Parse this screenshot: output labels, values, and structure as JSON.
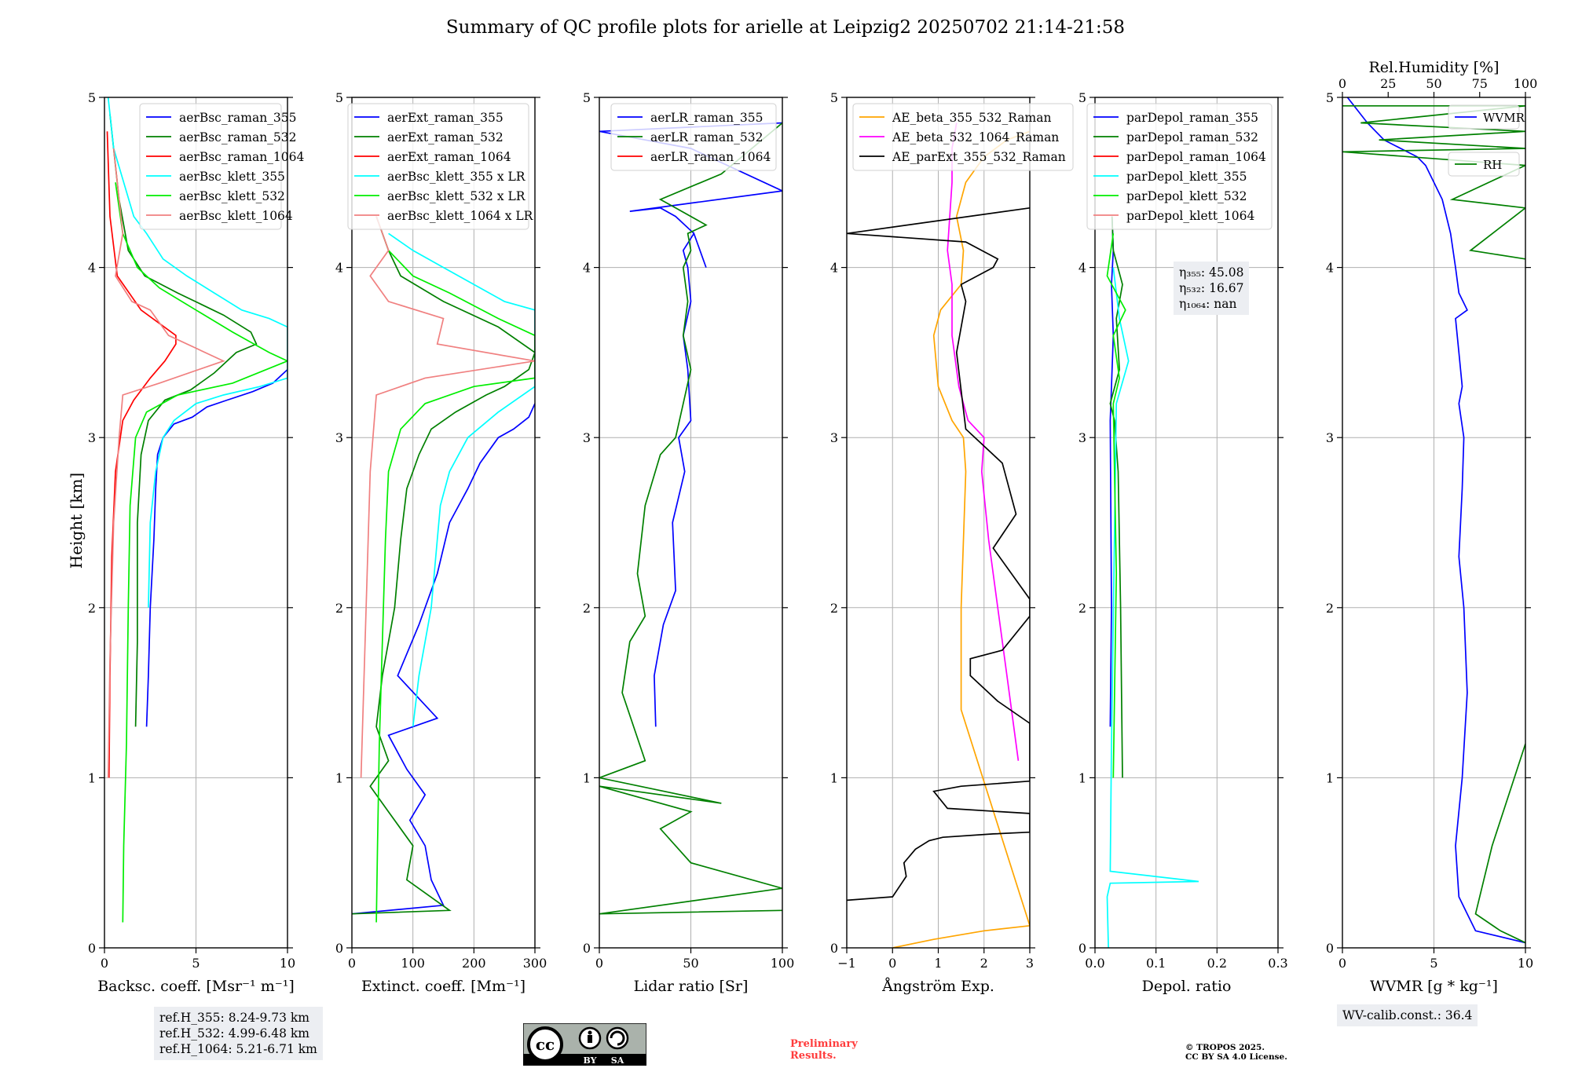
{
  "title": "Summary of QC profile plots for arielle at Leipzig2 20250702 21:14-21:58",
  "ylabel": "Height [km]",
  "chart_data": [
    {
      "type": "line",
      "xlabel": "Backsc. coeff. [Msr⁻¹ m⁻¹]",
      "xlim": [
        0,
        10
      ],
      "ylim": [
        0,
        5
      ],
      "xticks": [
        "0",
        "5",
        "10"
      ],
      "legend": "top-right",
      "series": [
        {
          "name": "aerBsc_raman_355",
          "color": "#0000ff",
          "x": [
            2.3,
            2.4,
            2.5,
            2.7,
            2.8,
            2.9,
            3.2,
            3.8,
            4.8,
            5.6,
            6.7,
            8.1,
            9.2,
            10.0
          ],
          "y": [
            1.3,
            1.6,
            2.0,
            2.4,
            2.7,
            2.9,
            3.0,
            3.08,
            3.12,
            3.18,
            3.22,
            3.27,
            3.32,
            3.4
          ]
        },
        {
          "name": "aerBsc_raman_532",
          "color": "#008000",
          "x": [
            1.7,
            1.8,
            1.8,
            2.0,
            2.4,
            3.3,
            4.7,
            6.0,
            7.2,
            8.3,
            8.0,
            6.5,
            4.0,
            2.2,
            1.3,
            0.8,
            0.3
          ],
          "y": [
            1.3,
            1.8,
            2.5,
            2.9,
            3.1,
            3.22,
            3.28,
            3.38,
            3.5,
            3.55,
            3.62,
            3.72,
            3.85,
            3.95,
            4.1,
            4.4,
            4.9
          ]
        },
        {
          "name": "aerBsc_raman_1064",
          "color": "#ff0000",
          "x": [
            0.25,
            0.3,
            0.4,
            0.6,
            1.0,
            1.6,
            2.5,
            3.3,
            3.9,
            3.9,
            2.0,
            0.7,
            0.3,
            0.15
          ],
          "y": [
            1.0,
            1.6,
            2.3,
            2.8,
            3.1,
            3.22,
            3.35,
            3.45,
            3.55,
            3.6,
            3.75,
            3.95,
            4.3,
            4.8
          ]
        },
        {
          "name": "aerBsc_klett_355",
          "color": "#00ffff",
          "x": [
            2.4,
            2.5,
            2.8,
            3.2,
            3.8,
            5.0,
            6.5,
            8.5,
            10.0,
            10.0,
            9.0,
            7.5,
            6.0,
            4.5,
            3.2,
            2.3,
            1.6,
            0.5,
            0.2
          ],
          "y": [
            2.0,
            2.5,
            2.8,
            3.0,
            3.1,
            3.2,
            3.25,
            3.3,
            3.35,
            3.65,
            3.7,
            3.75,
            3.85,
            3.95,
            4.05,
            4.2,
            4.3,
            4.7,
            5.0
          ]
        },
        {
          "name": "aerBsc_klett_532",
          "color": "#00ee00",
          "x": [
            1.0,
            1.05,
            1.2,
            1.3,
            1.4,
            1.7,
            2.3,
            4.0,
            7.0,
            10.0,
            9.0,
            7.0,
            5.0,
            3.0,
            1.8,
            1.0,
            0.6
          ],
          "y": [
            0.15,
            0.6,
            1.2,
            2.0,
            2.6,
            3.0,
            3.15,
            3.25,
            3.32,
            3.45,
            3.5,
            3.62,
            3.75,
            3.88,
            4.0,
            4.2,
            4.5
          ]
        },
        {
          "name": "aerBsc_klett_1064",
          "color": "#f08080",
          "x": [
            0.2,
            0.3,
            0.5,
            0.8,
            1.0,
            3.0,
            6.5,
            3.5,
            2.5,
            1.5,
            0.6,
            1.0,
            0.5
          ],
          "y": [
            1.0,
            1.7,
            2.5,
            3.0,
            3.25,
            3.32,
            3.45,
            3.6,
            3.75,
            3.8,
            3.95,
            4.2,
            4.7
          ]
        }
      ]
    },
    {
      "type": "line",
      "xlabel": "Extinct. coeff. [Mm⁻¹]",
      "xlim": [
        0,
        300
      ],
      "ylim": [
        0,
        5
      ],
      "xticks": [
        "0",
        "100",
        "200",
        "300"
      ],
      "legend": "top-right",
      "series": [
        {
          "name": "aerExt_raman_355",
          "color": "#0000ff",
          "x": [
            0,
            150,
            130,
            120,
            95,
            120,
            90,
            60,
            140,
            75,
            110,
            140,
            160,
            190,
            210,
            240,
            265,
            290,
            300
          ],
          "y": [
            0.2,
            0.25,
            0.4,
            0.6,
            0.75,
            0.9,
            1.05,
            1.25,
            1.35,
            1.6,
            1.9,
            2.2,
            2.5,
            2.7,
            2.85,
            3.0,
            3.05,
            3.12,
            3.2
          ]
        },
        {
          "name": "aerExt_raman_532",
          "color": "#008000",
          "x": [
            0,
            160,
            90,
            100,
            60,
            30,
            60,
            40,
            50,
            70,
            80,
            90,
            110,
            130,
            170,
            220,
            250,
            290,
            300,
            240,
            150,
            80,
            60,
            40
          ],
          "y": [
            0.2,
            0.22,
            0.4,
            0.6,
            0.8,
            0.95,
            1.1,
            1.3,
            1.6,
            2.0,
            2.4,
            2.7,
            2.9,
            3.05,
            3.15,
            3.25,
            3.3,
            3.4,
            3.5,
            3.65,
            3.8,
            3.95,
            4.1,
            4.3
          ]
        },
        {
          "name": "aerExt_raman_1064",
          "color": "#ff0000",
          "x": [],
          "y": []
        },
        {
          "name": "aerBsc_klett_355 x LR",
          "color": "#00ffff",
          "x": [
            100,
            110,
            130,
            140,
            145,
            160,
            190,
            240,
            300,
            300,
            250,
            200,
            150,
            100,
            60
          ],
          "y": [
            1.3,
            1.6,
            2.0,
            2.4,
            2.6,
            2.8,
            3.0,
            3.15,
            3.3,
            3.75,
            3.8,
            3.9,
            4.0,
            4.1,
            4.2
          ]
        },
        {
          "name": "aerBsc_klett_532 x LR",
          "color": "#00ee00",
          "x": [
            40,
            42,
            45,
            50,
            55,
            60,
            80,
            120,
            200,
            300,
            300,
            240,
            160,
            100,
            60
          ],
          "y": [
            0.15,
            0.6,
            1.2,
            1.8,
            2.4,
            2.8,
            3.05,
            3.2,
            3.3,
            3.35,
            3.6,
            3.7,
            3.85,
            3.95,
            4.1
          ]
        },
        {
          "name": "aerBsc_klett_1064 x LR",
          "color": "#f08080",
          "x": [
            15,
            20,
            25,
            30,
            40,
            120,
            300,
            140,
            150,
            60,
            30,
            60,
            40
          ],
          "y": [
            1.0,
            1.6,
            2.2,
            2.8,
            3.25,
            3.35,
            3.45,
            3.55,
            3.7,
            3.8,
            3.95,
            4.1,
            4.3
          ]
        }
      ]
    },
    {
      "type": "line",
      "xlabel": "Lidar ratio [Sr]",
      "xlim": [
        0,
        120
      ],
      "ylim": [
        0,
        5
      ],
      "xticks": [
        "0",
        "50",
        "100"
      ],
      "legend": "top-right",
      "series": [
        {
          "name": "aerLR_raman_355",
          "color": "#0000ff",
          "x": [
            37,
            36,
            42,
            50,
            48,
            56,
            52,
            60,
            58,
            55,
            60,
            58,
            55,
            62,
            70,
            62,
            50,
            40,
            20,
            120,
            60,
            0,
            120
          ],
          "y": [
            1.3,
            1.6,
            1.9,
            2.1,
            2.5,
            2.8,
            3.0,
            3.1,
            3.4,
            3.6,
            3.8,
            4.0,
            4.1,
            4.2,
            4.0,
            4.2,
            4.3,
            4.35,
            4.33,
            4.45,
            4.7,
            4.8,
            4.85
          ]
        },
        {
          "name": "aerLR_raman_532",
          "color": "#008000",
          "x": [
            120,
            0,
            120,
            60,
            40,
            60,
            0,
            80,
            0,
            30,
            15,
            20,
            30,
            25,
            30,
            40,
            50,
            55,
            60,
            55,
            58,
            55,
            60,
            58,
            70,
            50,
            40,
            80,
            120
          ],
          "y": [
            0.22,
            0.2,
            0.35,
            0.5,
            0.7,
            0.8,
            0.95,
            0.85,
            1.0,
            1.1,
            1.5,
            1.8,
            1.95,
            2.2,
            2.6,
            2.9,
            3.0,
            3.2,
            3.4,
            3.6,
            3.8,
            4.0,
            4.1,
            4.2,
            4.25,
            4.35,
            4.4,
            4.55,
            4.85
          ]
        },
        {
          "name": "aerLR_raman_1064",
          "color": "#ff0000",
          "x": [],
          "y": []
        }
      ]
    },
    {
      "type": "line",
      "xlabel": "Ångström Exp.",
      "xlim": [
        -1,
        3
      ],
      "ylim": [
        0,
        5
      ],
      "xticks": [
        "−1",
        "0",
        "1",
        "2",
        "3"
      ],
      "legend": "top-left",
      "series": [
        {
          "name": "AE_beta_355_532_Raman",
          "color": "#ffa500",
          "x": [
            0,
            0.9,
            2.0,
            3.0,
            1.5,
            1.5,
            1.6,
            1.55,
            1.3,
            1.0,
            0.9,
            1.05,
            1.5,
            1.55,
            1.4,
            1.6,
            2.0,
            2.5,
            3.0
          ],
          "y": [
            0,
            0.05,
            0.1,
            0.13,
            1.4,
            2.0,
            2.8,
            3.0,
            3.1,
            3.3,
            3.6,
            3.75,
            3.9,
            4.1,
            4.3,
            4.5,
            4.65,
            4.75,
            4.8
          ]
        },
        {
          "name": "AE_beta_532_1064_Raman",
          "color": "#ff00ff",
          "x": [
            2.75,
            2.5,
            2.3,
            2.1,
            1.95,
            2.0,
            1.65,
            1.45,
            1.3,
            1.3,
            1.2,
            1.3,
            1.3,
            1.4
          ],
          "y": [
            1.1,
            1.6,
            2.0,
            2.4,
            2.8,
            3.0,
            3.1,
            3.3,
            3.6,
            3.9,
            4.1,
            4.5,
            4.7,
            4.85
          ]
        },
        {
          "name": "AE_parExt_355_532_Raman",
          "color": "#000000",
          "x": [
            -1,
            0,
            0.3,
            0.25,
            0.5,
            0.8,
            1.1,
            2.2,
            3.0,
            3.0,
            1.2,
            0.9,
            1.5,
            3.0,
            3.0,
            2.3,
            1.7,
            1.7,
            2.4,
            3.0,
            3.0,
            2.2,
            2.7,
            2.4,
            1.6,
            1.4,
            1.6,
            1.5,
            2.2,
            2.3,
            1.6,
            -1.0,
            3.0
          ],
          "y": [
            0.28,
            0.3,
            0.42,
            0.5,
            0.58,
            0.63,
            0.65,
            0.67,
            0.68,
            0.79,
            0.82,
            0.92,
            0.95,
            0.98,
            1.32,
            1.45,
            1.6,
            1.7,
            1.75,
            1.95,
            2.05,
            2.35,
            2.55,
            2.85,
            3.05,
            3.5,
            3.8,
            3.9,
            4.0,
            4.05,
            4.15,
            4.2,
            4.35
          ]
        }
      ]
    },
    {
      "type": "line",
      "xlabel": "Depol. ratio",
      "xlim": [
        0,
        0.3
      ],
      "ylim": [
        0,
        5
      ],
      "xticks": [
        "0.0",
        "0.1",
        "0.2",
        "0.3"
      ],
      "legend": "top-right",
      "series": [
        {
          "name": "parDepol_raman_355",
          "color": "#0000ff",
          "x": [
            0.025,
            0.027,
            0.025,
            0.027,
            0.03,
            0.027,
            0.03,
            0.028
          ],
          "y": [
            1.3,
            2.0,
            3.1,
            3.3,
            3.6,
            3.9,
            4.1,
            4.3
          ]
        },
        {
          "name": "parDepol_raman_532",
          "color": "#008000",
          "x": [
            0.045,
            0.042,
            0.038,
            0.032,
            0.025,
            0.04,
            0.035,
            0.045,
            0.03,
            0.028
          ],
          "y": [
            1.0,
            2.0,
            2.8,
            3.1,
            3.2,
            3.4,
            3.7,
            3.9,
            4.1,
            4.3
          ]
        },
        {
          "name": "parDepol_raman_1064",
          "color": "#ff0000",
          "x": [],
          "y": []
        },
        {
          "name": "parDepol_klett_355",
          "color": "#00ffff",
          "x": [
            0.022,
            0.02,
            0.025,
            0.17,
            0.025,
            0.027,
            0.035,
            0.055,
            0.04,
            0.03
          ],
          "y": [
            0,
            0.3,
            0.38,
            0.39,
            0.45,
            1.2,
            3.2,
            3.45,
            3.7,
            4.0
          ]
        },
        {
          "name": "parDepol_klett_532",
          "color": "#00ee00",
          "x": [
            0.03,
            0.035,
            0.03,
            0.04,
            0.03,
            0.05,
            0.02,
            0.03
          ],
          "y": [
            1.0,
            2.2,
            3.2,
            3.35,
            3.6,
            3.75,
            3.95,
            4.2
          ]
        },
        {
          "name": "parDepol_klett_1064",
          "color": "#f08080",
          "x": [],
          "y": []
        }
      ]
    },
    {
      "type": "line",
      "xlabel": "WVMR [g * kg⁻¹]",
      "xlim": [
        0,
        11
      ],
      "ylim": [
        0,
        5
      ],
      "xticks": [
        "0",
        "5",
        "10"
      ],
      "top_axis": {
        "label": "Rel.Humidity [%]",
        "xlim": [
          0,
          100
        ],
        "xticks": [
          "0",
          "25",
          "50",
          "75",
          "100"
        ]
      },
      "legend": "top-right",
      "series": [
        {
          "name": "WVMR",
          "color": "#0000ff",
          "x": [
            11,
            8,
            7.5,
            7,
            6.8,
            7.2,
            7.5,
            7.3,
            7.0,
            7.2,
            7.3,
            7.0,
            7.2,
            7.0,
            6.8,
            7.5,
            7.0,
            6.8,
            6.5,
            6.0,
            5.5,
            5.0,
            4.5,
            3.5,
            2.5,
            2.0,
            1.5,
            0.3
          ],
          "y": [
            0.03,
            0.1,
            0.2,
            0.3,
            0.6,
            1.0,
            1.5,
            2.0,
            2.3,
            2.7,
            3.0,
            3.2,
            3.3,
            3.5,
            3.7,
            3.75,
            3.85,
            4.0,
            4.2,
            4.4,
            4.5,
            4.6,
            4.65,
            4.7,
            4.75,
            4.8,
            4.85,
            5.0
          ]
        },
        {
          "name": "RH",
          "color": "#008000",
          "x": [
            11,
            9.5,
            8,
            8.5,
            9,
            10,
            11
          ],
          "y": [
            0.03,
            0.1,
            0.2,
            0.4,
            0.6,
            0.9,
            1.2
          ]
        }
      ],
      "rh_series_top": {
        "x_percent": [
          0,
          100,
          10,
          100,
          20,
          100,
          0,
          100,
          60,
          100,
          70,
          100
        ],
        "y": [
          4.95,
          4.95,
          4.85,
          4.8,
          4.75,
          4.7,
          4.68,
          4.6,
          4.4,
          4.35,
          4.1,
          4.05
        ]
      }
    }
  ],
  "eta": [
    "η₃₅₅: 45.08",
    "η₅₃₂: 16.67",
    "η₁₀₆₄: nan"
  ],
  "ref_heights": [
    "ref.H_355: 8.24-9.73 km",
    "ref.H_532: 4.99-6.48 km",
    "ref.H_1064: 5.21-6.71 km"
  ],
  "wv_calib": "WV-calib.const.: 36.4",
  "cc_badge": {
    "by": "BY",
    "sa": "SA"
  },
  "preliminary": [
    "Preliminary",
    "Results."
  ],
  "copyright": [
    "© TROPOS 2025.",
    "CC BY SA 4.0 License."
  ]
}
